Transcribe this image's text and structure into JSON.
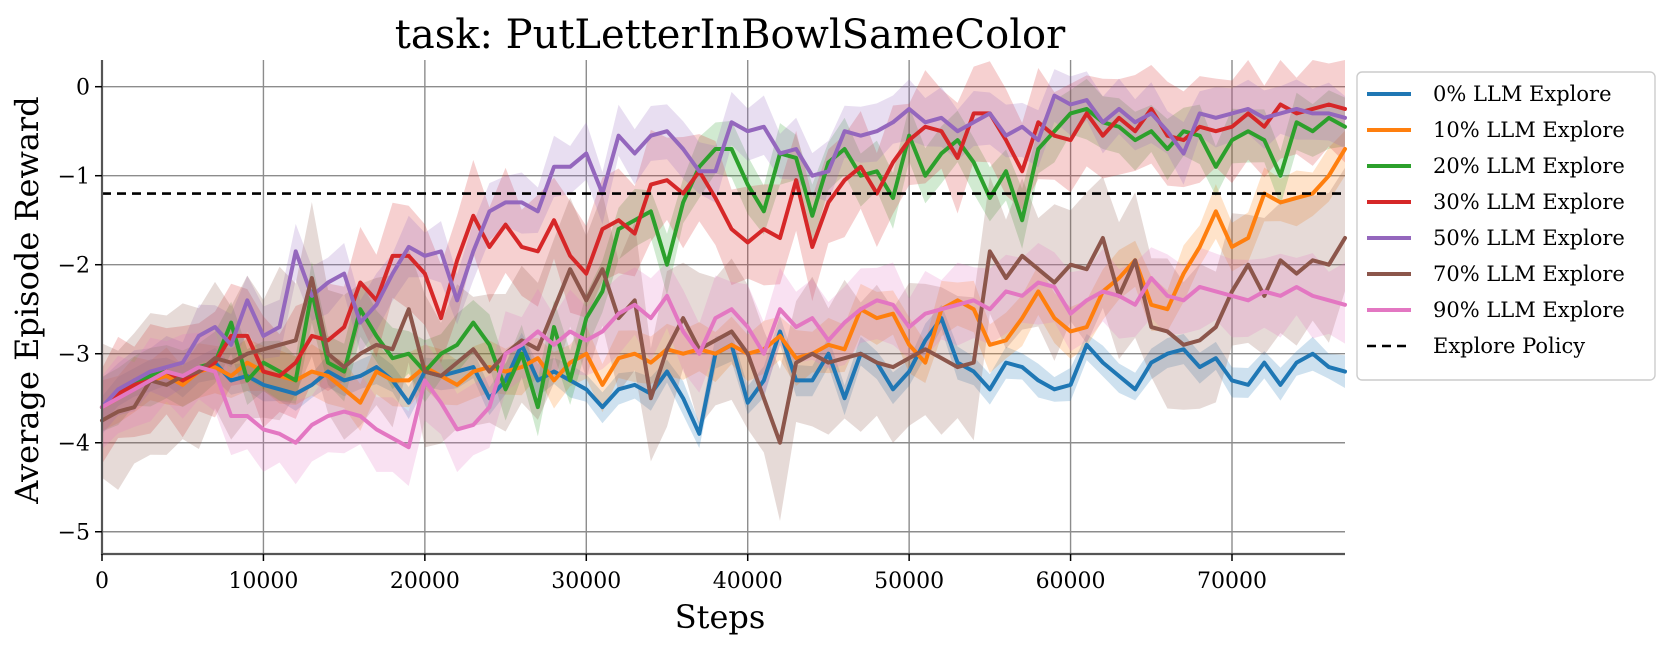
{
  "chart_data": {
    "type": "line",
    "title": "task: PutLetterInBowlSameColor",
    "xlabel": "Steps",
    "ylabel": "Average Episode Reward",
    "xlim": [
      0,
      77000
    ],
    "ylim": [
      -5.25,
      0.3
    ],
    "x_ticks": [
      0,
      10000,
      20000,
      30000,
      40000,
      50000,
      60000,
      70000
    ],
    "x_tick_labels": [
      "0",
      "10000",
      "20000",
      "30000",
      "40000",
      "50000",
      "60000",
      "70000"
    ],
    "y_ticks": [
      0,
      -1,
      -2,
      -3,
      -4,
      -5
    ],
    "y_tick_labels": [
      "0",
      "−1",
      "−2",
      "−3",
      "−4",
      "−5"
    ],
    "grid": true,
    "legend_position": "outside-right-top",
    "x_step": 1000,
    "series": [
      {
        "name": "0% LLM Explore",
        "color": "#1f77b4",
        "values": [
          -3.6,
          -3.45,
          -3.3,
          -3.25,
          -3.2,
          -3.3,
          -3.2,
          -3.1,
          -3.3,
          -3.25,
          -3.35,
          -3.4,
          -3.45,
          -3.35,
          -3.2,
          -3.3,
          -3.25,
          -3.15,
          -3.3,
          -3.55,
          -3.2,
          -3.25,
          -3.2,
          -3.15,
          -3.5,
          -3.3,
          -2.9,
          -3.3,
          -3.2,
          -3.3,
          -3.4,
          -3.6,
          -3.4,
          -3.35,
          -3.45,
          -3.2,
          -3.5,
          -3.9,
          -3.0,
          -2.9,
          -3.55,
          -3.3,
          -2.75,
          -3.3,
          -3.3,
          -3.0,
          -3.5,
          -3.0,
          -3.1,
          -3.4,
          -3.2,
          -2.85,
          -2.6,
          -3.1,
          -3.2,
          -3.4,
          -3.1,
          -3.15,
          -3.3,
          -3.4,
          -3.35,
          -2.9,
          -3.1,
          -3.25,
          -3.4,
          -3.1,
          -3.0,
          -2.95,
          -3.15,
          -3.05,
          -3.3,
          -3.35,
          -3.1,
          -3.35,
          -3.1,
          -3.0,
          -3.15,
          -3.2
        ]
      },
      {
        "name": "10% LLM Explore",
        "color": "#ff7f0e",
        "values": [
          -3.6,
          -3.5,
          -3.35,
          -3.3,
          -3.25,
          -3.35,
          -3.2,
          -3.15,
          -3.25,
          -3.1,
          -3.2,
          -3.25,
          -3.3,
          -3.2,
          -3.25,
          -3.4,
          -3.55,
          -3.2,
          -3.3,
          -3.3,
          -3.15,
          -3.25,
          -3.35,
          -3.2,
          -3.15,
          -3.2,
          -3.15,
          -3.05,
          -3.3,
          -3.1,
          -3.0,
          -3.35,
          -3.05,
          -3.0,
          -3.1,
          -2.95,
          -3.0,
          -2.95,
          -3.0,
          -2.9,
          -3.0,
          -2.95,
          -2.8,
          -3.05,
          -3.0,
          -2.9,
          -2.95,
          -2.5,
          -2.6,
          -2.55,
          -2.9,
          -3.1,
          -2.5,
          -2.4,
          -2.5,
          -2.9,
          -2.85,
          -2.6,
          -2.3,
          -2.6,
          -2.75,
          -2.7,
          -2.3,
          -2.15,
          -1.95,
          -2.45,
          -2.5,
          -2.1,
          -1.8,
          -1.4,
          -1.8,
          -1.7,
          -1.2,
          -1.3,
          -1.25,
          -1.2,
          -1.0,
          -0.7
        ]
      },
      {
        "name": "20% LLM Explore",
        "color": "#2ca02c",
        "values": [
          -3.6,
          -3.45,
          -3.35,
          -3.25,
          -3.2,
          -3.3,
          -3.15,
          -3.1,
          -2.65,
          -3.3,
          -3.1,
          -3.2,
          -3.3,
          -2.3,
          -3.1,
          -3.2,
          -2.5,
          -2.8,
          -3.05,
          -3.0,
          -3.2,
          -3.0,
          -2.9,
          -2.65,
          -2.9,
          -3.4,
          -3.0,
          -3.6,
          -2.7,
          -3.3,
          -2.6,
          -2.3,
          -1.6,
          -1.5,
          -1.4,
          -2.0,
          -1.3,
          -0.9,
          -0.7,
          -0.7,
          -1.1,
          -1.4,
          -0.75,
          -0.8,
          -1.45,
          -0.85,
          -0.7,
          -1.0,
          -0.95,
          -1.25,
          -0.55,
          -1.0,
          -0.75,
          -0.6,
          -0.85,
          -1.25,
          -0.95,
          -1.5,
          -0.7,
          -0.5,
          -0.3,
          -0.25,
          -0.4,
          -0.45,
          -0.6,
          -0.5,
          -0.7,
          -0.5,
          -0.55,
          -0.9,
          -0.6,
          -0.5,
          -0.6,
          -1.0,
          -0.4,
          -0.5,
          -0.35,
          -0.45
        ]
      },
      {
        "name": "30% LLM Explore",
        "color": "#d62728",
        "values": [
          -3.6,
          -3.45,
          -3.35,
          -3.3,
          -3.2,
          -3.3,
          -3.2,
          -3.1,
          -2.8,
          -2.8,
          -3.2,
          -3.25,
          -3.1,
          -2.8,
          -2.85,
          -2.7,
          -2.2,
          -2.4,
          -1.9,
          -1.9,
          -2.1,
          -2.6,
          -1.95,
          -1.45,
          -1.8,
          -1.55,
          -1.8,
          -1.85,
          -1.5,
          -1.9,
          -2.1,
          -1.6,
          -1.5,
          -1.65,
          -1.1,
          -1.05,
          -1.2,
          -0.95,
          -1.25,
          -1.6,
          -1.75,
          -1.6,
          -1.7,
          -1.05,
          -1.8,
          -1.3,
          -1.05,
          -0.9,
          -1.2,
          -0.85,
          -0.6,
          -0.45,
          -0.5,
          -0.8,
          -0.3,
          -0.3,
          -0.6,
          -0.95,
          -0.4,
          -0.55,
          -0.6,
          -0.3,
          -0.55,
          -0.35,
          -0.5,
          -0.25,
          -0.55,
          -0.6,
          -0.45,
          -0.5,
          -0.45,
          -0.3,
          -0.45,
          -0.2,
          -0.3,
          -0.25,
          -0.2,
          -0.25
        ]
      },
      {
        "name": "50% LLM Explore",
        "color": "#9467bd",
        "values": [
          -3.6,
          -3.4,
          -3.3,
          -3.2,
          -3.15,
          -3.1,
          -2.8,
          -2.7,
          -2.9,
          -2.4,
          -2.8,
          -2.7,
          -1.85,
          -2.35,
          -2.2,
          -2.1,
          -2.65,
          -2.45,
          -2.1,
          -1.8,
          -1.9,
          -1.85,
          -2.4,
          -1.85,
          -1.4,
          -1.3,
          -1.3,
          -1.4,
          -0.9,
          -0.9,
          -0.75,
          -1.2,
          -0.55,
          -0.75,
          -0.55,
          -0.5,
          -0.7,
          -0.95,
          -0.95,
          -0.4,
          -0.5,
          -0.45,
          -0.75,
          -0.7,
          -1.0,
          -0.95,
          -0.5,
          -0.55,
          -0.5,
          -0.4,
          -0.25,
          -0.4,
          -0.35,
          -0.5,
          -0.4,
          -0.3,
          -0.55,
          -0.45,
          -0.6,
          -0.1,
          -0.2,
          -0.15,
          -0.4,
          -0.25,
          -0.4,
          -0.3,
          -0.5,
          -0.75,
          -0.3,
          -0.35,
          -0.3,
          -0.25,
          -0.35,
          -0.3,
          -0.25,
          -0.3,
          -0.3,
          -0.35
        ]
      },
      {
        "name": "70% LLM Explore",
        "color": "#8c564b",
        "values": [
          -3.75,
          -3.65,
          -3.6,
          -3.3,
          -3.35,
          -3.25,
          -3.2,
          -3.05,
          -3.1,
          -3.0,
          -2.95,
          -2.9,
          -2.85,
          -2.15,
          -3.0,
          -3.15,
          -3.0,
          -2.9,
          -2.95,
          -2.5,
          -3.2,
          -3.25,
          -3.1,
          -2.95,
          -3.2,
          -3.0,
          -2.85,
          -2.95,
          -2.5,
          -2.05,
          -2.4,
          -2.05,
          -2.6,
          -2.4,
          -3.5,
          -2.95,
          -2.6,
          -2.95,
          -2.85,
          -2.75,
          -3.0,
          -3.5,
          -4.0,
          -3.1,
          -3.0,
          -3.1,
          -3.05,
          -3.0,
          -3.1,
          -3.15,
          -3.05,
          -2.95,
          -3.05,
          -3.15,
          -3.1,
          -1.85,
          -2.15,
          -1.9,
          -2.05,
          -2.2,
          -2.0,
          -2.05,
          -1.7,
          -2.35,
          -1.95,
          -2.7,
          -2.75,
          -2.9,
          -2.85,
          -2.7,
          -2.3,
          -2.0,
          -2.35,
          -1.95,
          -2.1,
          -1.95,
          -2.0,
          -1.7
        ]
      },
      {
        "name": "90% LLM Explore",
        "color": "#e377c2",
        "values": [
          -3.6,
          -3.5,
          -3.4,
          -3.3,
          -3.2,
          -3.25,
          -3.15,
          -3.2,
          -3.7,
          -3.7,
          -3.85,
          -3.9,
          -4.0,
          -3.8,
          -3.7,
          -3.65,
          -3.7,
          -3.85,
          -3.95,
          -4.05,
          -3.3,
          -3.55,
          -3.85,
          -3.8,
          -3.6,
          -3.0,
          -2.9,
          -2.75,
          -2.9,
          -2.75,
          -2.85,
          -2.75,
          -2.55,
          -2.45,
          -2.6,
          -2.35,
          -2.75,
          -3.0,
          -2.6,
          -2.5,
          -2.7,
          -3.0,
          -2.5,
          -2.7,
          -2.6,
          -2.85,
          -2.65,
          -2.5,
          -2.4,
          -2.45,
          -2.7,
          -2.55,
          -2.5,
          -2.45,
          -2.4,
          -2.5,
          -2.3,
          -2.35,
          -2.2,
          -2.25,
          -2.55,
          -2.4,
          -2.3,
          -2.35,
          -2.45,
          -2.15,
          -2.35,
          -2.4,
          -2.25,
          -2.3,
          -2.35,
          -2.4,
          -2.3,
          -2.35,
          -2.25,
          -2.35,
          -2.4,
          -2.45
        ]
      },
      {
        "name": "Explore Policy",
        "color": "#000000",
        "dashed": true,
        "x": [
          0,
          77000
        ],
        "values": [
          -1.2,
          -1.2
        ]
      }
    ]
  }
}
